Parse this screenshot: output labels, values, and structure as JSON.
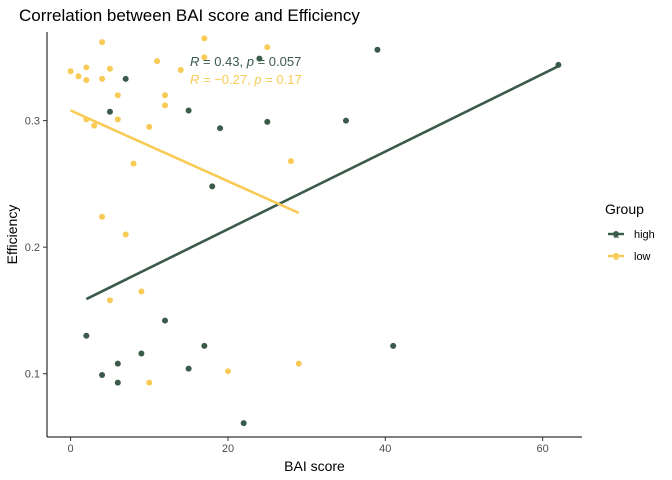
{
  "chart_data": {
    "type": "scatter",
    "title": "Correlation between BAI score and Efficiency",
    "xlabel": "BAI score",
    "ylabel": "Efficiency",
    "xlim": [
      -3,
      65
    ],
    "ylim": [
      0.05,
      0.37
    ],
    "x_ticks": [
      0,
      20,
      40,
      60
    ],
    "y_ticks": [
      0.1,
      0.2,
      0.3
    ],
    "x_tick_labels": [
      "0",
      "20",
      "40",
      "60"
    ],
    "y_tick_labels": [
      "0.1",
      "0.2",
      "0.3"
    ],
    "grid": false,
    "legend": {
      "title": "Group",
      "position": "right",
      "glyph_text": "a"
    },
    "series": [
      {
        "name": "high",
        "color": "#3a5a4a",
        "points": [
          {
            "x": 2,
            "y": 0.13
          },
          {
            "x": 4,
            "y": 0.099
          },
          {
            "x": 5,
            "y": 0.307
          },
          {
            "x": 6,
            "y": 0.108
          },
          {
            "x": 6,
            "y": 0.093
          },
          {
            "x": 7,
            "y": 0.333
          },
          {
            "x": 9,
            "y": 0.116
          },
          {
            "x": 12,
            "y": 0.142
          },
          {
            "x": 15,
            "y": 0.104
          },
          {
            "x": 15,
            "y": 0.308
          },
          {
            "x": 17,
            "y": 0.122
          },
          {
            "x": 18,
            "y": 0.248
          },
          {
            "x": 19,
            "y": 0.294
          },
          {
            "x": 22,
            "y": 0.061
          },
          {
            "x": 24,
            "y": 0.349
          },
          {
            "x": 25,
            "y": 0.299
          },
          {
            "x": 35,
            "y": 0.3
          },
          {
            "x": 39,
            "y": 0.356
          },
          {
            "x": 41,
            "y": 0.122
          },
          {
            "x": 62,
            "y": 0.344
          }
        ],
        "fit": {
          "x": [
            2,
            62
          ],
          "y": [
            0.159,
            0.343
          ]
        },
        "annotation": {
          "prefix": "R",
          "text": " = 0.43, ",
          "p_label": "p",
          "p_text": " = 0.057"
        }
      },
      {
        "name": "low",
        "color": "#f8cb57",
        "points": [
          {
            "x": 0,
            "y": 0.339
          },
          {
            "x": 1,
            "y": 0.335
          },
          {
            "x": 2,
            "y": 0.342
          },
          {
            "x": 2,
            "y": 0.332
          },
          {
            "x": 2,
            "y": 0.301
          },
          {
            "x": 3,
            "y": 0.296
          },
          {
            "x": 4,
            "y": 0.362
          },
          {
            "x": 4,
            "y": 0.333
          },
          {
            "x": 4,
            "y": 0.224
          },
          {
            "x": 5,
            "y": 0.341
          },
          {
            "x": 5,
            "y": 0.158
          },
          {
            "x": 6,
            "y": 0.32
          },
          {
            "x": 6,
            "y": 0.301
          },
          {
            "x": 7,
            "y": 0.21
          },
          {
            "x": 8,
            "y": 0.266
          },
          {
            "x": 9,
            "y": 0.165
          },
          {
            "x": 10,
            "y": 0.295
          },
          {
            "x": 10,
            "y": 0.093
          },
          {
            "x": 11,
            "y": 0.347
          },
          {
            "x": 12,
            "y": 0.32
          },
          {
            "x": 12,
            "y": 0.312
          },
          {
            "x": 14,
            "y": 0.34
          },
          {
            "x": 17,
            "y": 0.365
          },
          {
            "x": 17,
            "y": 0.35
          },
          {
            "x": 20,
            "y": 0.102
          },
          {
            "x": 25,
            "y": 0.358
          },
          {
            "x": 28,
            "y": 0.268
          },
          {
            "x": 29,
            "y": 0.108
          }
        ],
        "fit": {
          "x": [
            0,
            29
          ],
          "y": [
            0.308,
            0.227
          ]
        },
        "annotation": {
          "prefix": "R",
          "text": " = −0.27, ",
          "p_label": "p",
          "p_text": " = 0.17"
        }
      }
    ]
  }
}
